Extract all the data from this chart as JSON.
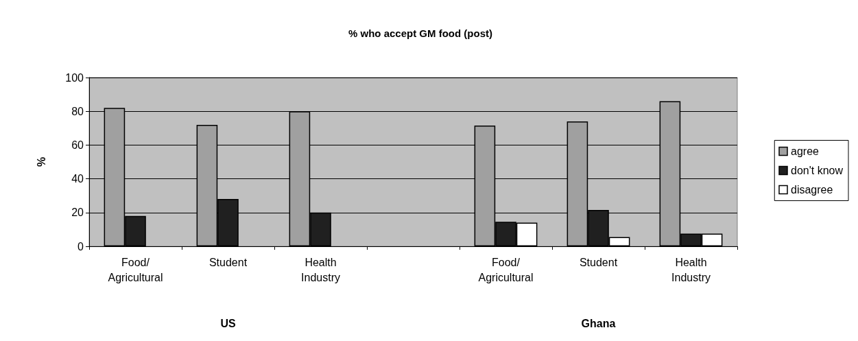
{
  "chart_data": {
    "type": "bar",
    "title": "% who accept GM food (post)",
    "ylabel": "%",
    "categories": [
      "Food/\nAgricultural",
      "Student",
      "Health\nIndustry",
      null,
      "Food/\nAgricultural",
      "Student",
      "Health\nIndustry"
    ],
    "series": [
      {
        "name": "agree",
        "color": "#a0a0a0",
        "values": [
          82,
          72,
          80,
          null,
          71.5,
          74,
          86
        ]
      },
      {
        "name": "don't know",
        "color": "#202020",
        "values": [
          18,
          28,
          20,
          null,
          14.5,
          21.5,
          7.5
        ]
      },
      {
        "name": "disagree",
        "color": "#ffffff",
        "values": [
          null,
          null,
          null,
          null,
          14,
          5.5,
          7.5
        ]
      }
    ],
    "ylim": [
      0,
      100
    ],
    "yticks": [
      0,
      20,
      40,
      60,
      80,
      100
    ],
    "grid": "y",
    "legend": "right",
    "annotations": [
      "US",
      "Ghana"
    ]
  }
}
